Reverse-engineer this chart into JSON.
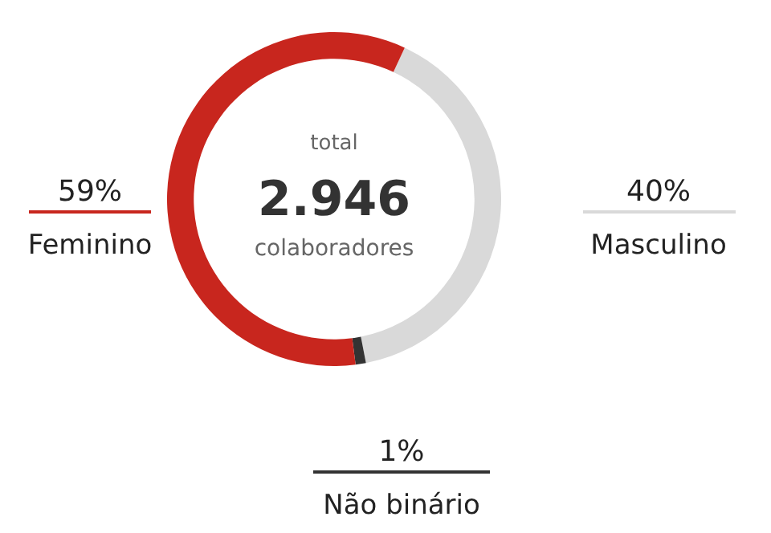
{
  "chart_data": {
    "type": "donut",
    "categories": [
      "Masculino",
      "Não binário",
      "Feminino"
    ],
    "values": [
      40,
      1,
      59
    ],
    "colors": [
      "#d9d9d9",
      "#333333",
      "#c8261e"
    ],
    "value_labels": [
      "40%",
      "1%",
      "59%"
    ],
    "annotations": [
      "total",
      "2.946",
      "colaboradores"
    ],
    "legend": false
  }
}
